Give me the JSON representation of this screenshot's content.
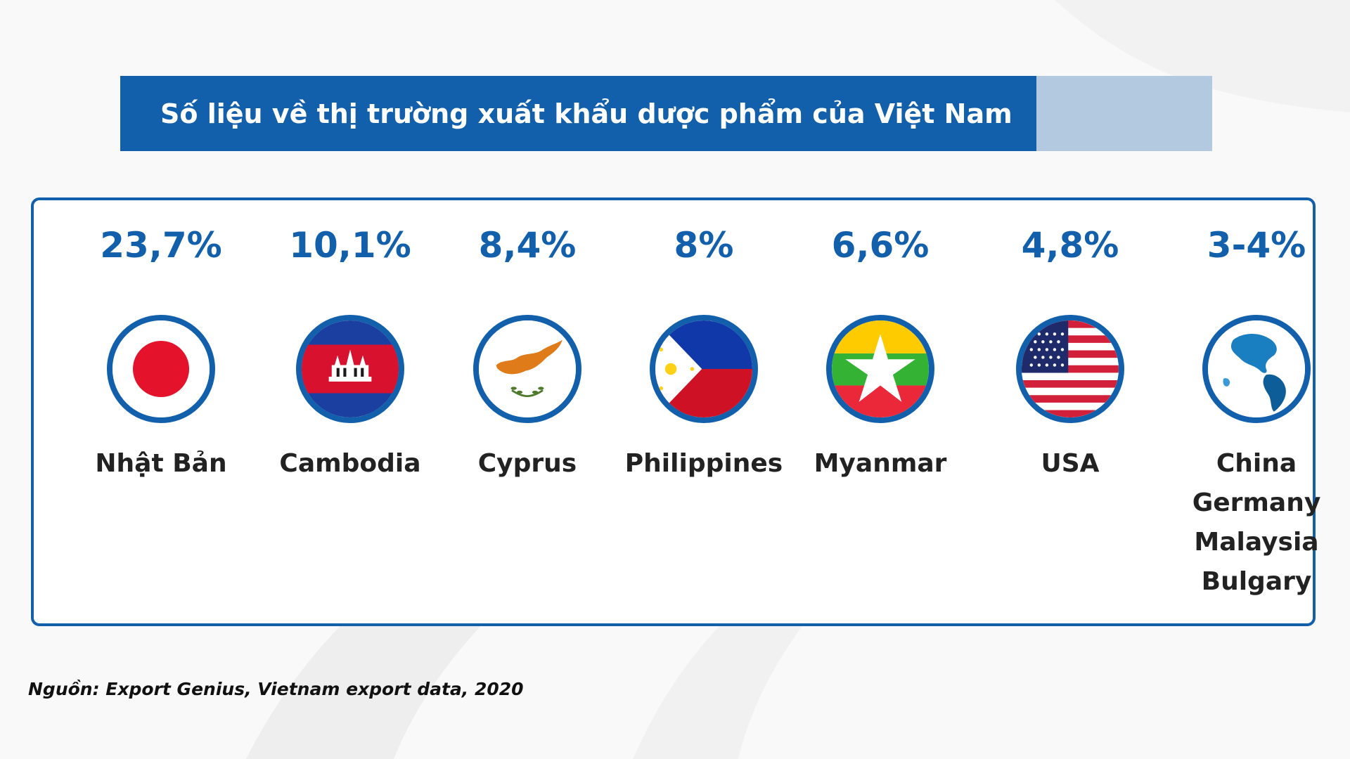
{
  "title": "Số liệu về thị trường xuất khẩu dược phẩm của Việt Nam",
  "colors": {
    "accent": "#1260ac",
    "accent_light": "#b3c9e0",
    "text": "#222222"
  },
  "markets": [
    {
      "percent": "23,7%",
      "flag_icon": "japan-flag-icon",
      "names": [
        "Nhật Bản"
      ]
    },
    {
      "percent": "10,1%",
      "flag_icon": "cambodia-flag-icon",
      "names": [
        "Cambodia"
      ]
    },
    {
      "percent": "8,4%",
      "flag_icon": "cyprus-flag-icon",
      "names": [
        "Cyprus"
      ]
    },
    {
      "percent": "8%",
      "flag_icon": "philippines-flag-icon",
      "names": [
        "Philippines"
      ]
    },
    {
      "percent": "6,6%",
      "flag_icon": "myanmar-flag-icon",
      "names": [
        "Myanmar"
      ]
    },
    {
      "percent": "4,8%",
      "flag_icon": "usa-flag-icon",
      "names": [
        "USA"
      ]
    },
    {
      "percent": "3-4%",
      "flag_icon": "globe-icon",
      "names": [
        "China",
        "Germany",
        "Malaysia",
        "Bulgary"
      ]
    }
  ],
  "source": "Nguồn: Export Genius, Vietnam export data, 2020"
}
